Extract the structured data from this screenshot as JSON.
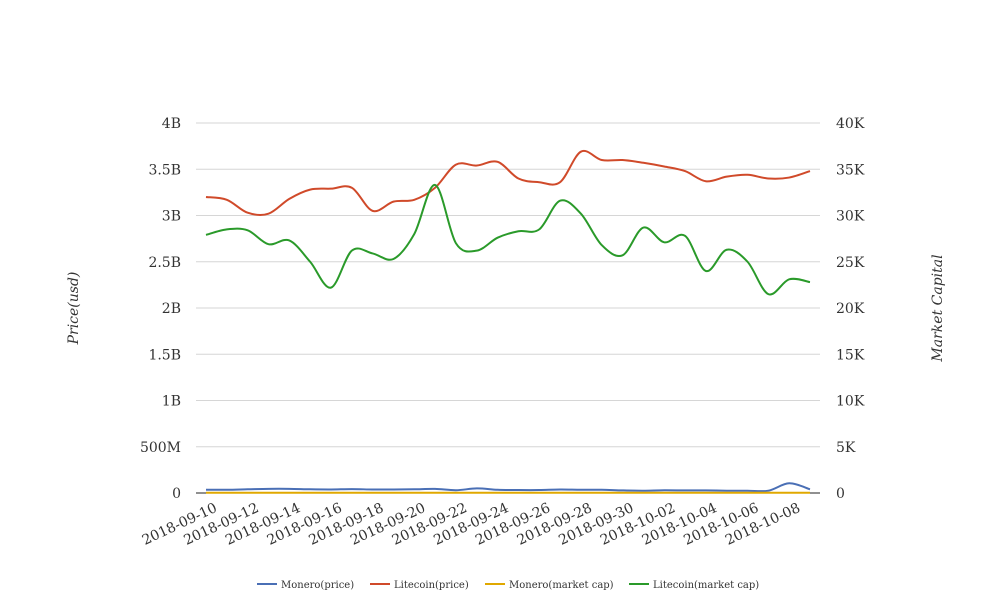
{
  "chart_data": {
    "type": "line",
    "title": "",
    "xlabel": "",
    "ylabel_left": "Price(usd)",
    "ylabel_right": "Market Capital",
    "ylim_left": [
      0,
      4000000000
    ],
    "ylim_right": [
      0,
      40000
    ],
    "y_ticks_left": [
      "0",
      "500M",
      "1B",
      "1.5B",
      "2B",
      "2.5B",
      "3B",
      "3.5B",
      "4B"
    ],
    "y_ticks_right": [
      "0",
      "5K",
      "10K",
      "15K",
      "20K",
      "25K",
      "30K",
      "35K",
      "40K"
    ],
    "x_tick_labels": [
      "2018-09-10",
      "2018-09-12",
      "2018-09-14",
      "2018-09-16",
      "2018-09-18",
      "2018-09-20",
      "2018-09-22",
      "2018-09-24",
      "2018-09-26",
      "2018-09-28",
      "2018-09-30",
      "2018-10-02",
      "2018-10-04",
      "2018-10-06",
      "2018-10-08"
    ],
    "x": [
      "2018-09-10",
      "2018-09-11",
      "2018-09-12",
      "2018-09-13",
      "2018-09-14",
      "2018-09-15",
      "2018-09-16",
      "2018-09-17",
      "2018-09-18",
      "2018-09-19",
      "2018-09-20",
      "2018-09-21",
      "2018-09-22",
      "2018-09-23",
      "2018-09-24",
      "2018-09-25",
      "2018-09-26",
      "2018-09-27",
      "2018-09-28",
      "2018-09-29",
      "2018-09-30",
      "2018-10-01",
      "2018-10-02",
      "2018-10-03",
      "2018-10-04",
      "2018-10-05",
      "2018-10-06",
      "2018-10-07",
      "2018-10-08",
      "2018-10-09"
    ],
    "grid": true,
    "legend_position": "bottom",
    "series": [
      {
        "name": "Monero(price)",
        "axis": "left",
        "color": "#4a6fb5",
        "values": [
          35000000,
          35000000,
          40000000,
          45000000,
          45000000,
          40000000,
          38000000,
          42000000,
          38000000,
          38000000,
          40000000,
          45000000,
          30000000,
          50000000,
          35000000,
          32000000,
          32000000,
          38000000,
          35000000,
          35000000,
          28000000,
          25000000,
          30000000,
          28000000,
          28000000,
          25000000,
          25000000,
          25000000,
          105000000,
          40000000
        ]
      },
      {
        "name": "Litecoin(price)",
        "axis": "left",
        "color": "#d04a2a",
        "values": [
          3200000000,
          3170000000,
          3030000000,
          3020000000,
          3180000000,
          3280000000,
          3290000000,
          3300000000,
          3050000000,
          3150000000,
          3170000000,
          3300000000,
          3550000000,
          3540000000,
          3580000000,
          3400000000,
          3360000000,
          3360000000,
          3690000000,
          3600000000,
          3600000000,
          3570000000,
          3530000000,
          3480000000,
          3370000000,
          3420000000,
          3440000000,
          3400000000,
          3410000000,
          3480000000
        ]
      },
      {
        "name": "Monero(market cap)",
        "axis": "right",
        "color": "#e0a800",
        "values": [
          20,
          20,
          20,
          20,
          20,
          20,
          20,
          20,
          20,
          20,
          20,
          20,
          20,
          20,
          20,
          20,
          20,
          20,
          20,
          20,
          20,
          20,
          20,
          20,
          20,
          20,
          20,
          20,
          20,
          20
        ]
      },
      {
        "name": "Litecoin(market cap)",
        "axis": "right",
        "color": "#2a9a2a",
        "values": [
          27900,
          28500,
          28400,
          26900,
          27300,
          25000,
          22200,
          26200,
          25900,
          25300,
          28000,
          33300,
          27000,
          26200,
          27600,
          28300,
          28500,
          31600,
          30200,
          26800,
          25700,
          28700,
          27100,
          27800,
          24000,
          26300,
          25000,
          21500,
          23100,
          22800
        ]
      }
    ]
  }
}
